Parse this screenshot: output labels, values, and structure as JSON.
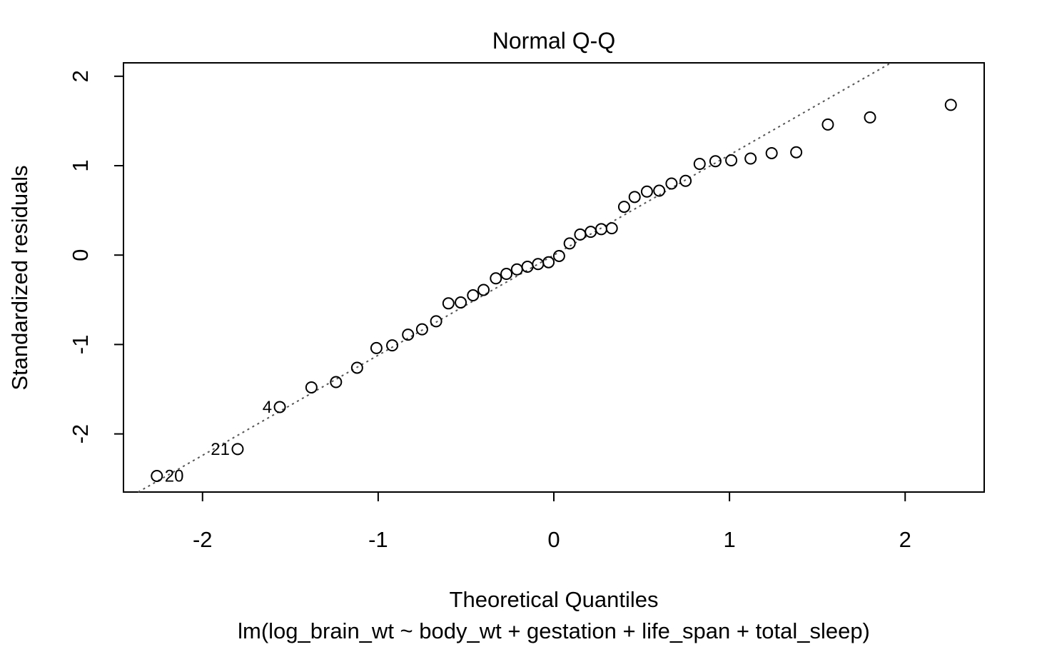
{
  "chart_data": {
    "type": "scatter",
    "title": "Normal Q-Q",
    "xlabel": "Theoretical Quantiles",
    "subtitle": "lm(log_brain_wt ~ body_wt + gestation + life_span + total_sleep)",
    "ylabel": "Standardized residuals",
    "xlim": [
      -2.45,
      2.45
    ],
    "ylim": [
      -2.65,
      2.15
    ],
    "x_ticks": [
      -2,
      -1,
      0,
      1,
      2
    ],
    "y_ticks": [
      -2,
      -1,
      0,
      1,
      2
    ],
    "x_tick_labels": [
      "-2",
      "-1",
      "0",
      "1",
      "2"
    ],
    "y_tick_labels": [
      "-2",
      "-1",
      "0",
      "1",
      "2"
    ],
    "reference_line": {
      "intercept": 0.0,
      "slope": 1.12
    },
    "points": [
      {
        "x": -2.26,
        "y": -2.47,
        "label": "20"
      },
      {
        "x": -1.8,
        "y": -2.17,
        "label": "21"
      },
      {
        "x": -1.56,
        "y": -1.7,
        "label": "4"
      },
      {
        "x": -1.38,
        "y": -1.48
      },
      {
        "x": -1.24,
        "y": -1.42
      },
      {
        "x": -1.12,
        "y": -1.26
      },
      {
        "x": -1.01,
        "y": -1.04
      },
      {
        "x": -0.92,
        "y": -1.01
      },
      {
        "x": -0.83,
        "y": -0.89
      },
      {
        "x": -0.75,
        "y": -0.83
      },
      {
        "x": -0.67,
        "y": -0.74
      },
      {
        "x": -0.6,
        "y": -0.54
      },
      {
        "x": -0.53,
        "y": -0.53
      },
      {
        "x": -0.46,
        "y": -0.45
      },
      {
        "x": -0.4,
        "y": -0.39
      },
      {
        "x": -0.33,
        "y": -0.26
      },
      {
        "x": -0.27,
        "y": -0.21
      },
      {
        "x": -0.21,
        "y": -0.16
      },
      {
        "x": -0.15,
        "y": -0.13
      },
      {
        "x": -0.09,
        "y": -0.1
      },
      {
        "x": -0.03,
        "y": -0.08
      },
      {
        "x": 0.03,
        "y": -0.01
      },
      {
        "x": 0.09,
        "y": 0.13
      },
      {
        "x": 0.15,
        "y": 0.23
      },
      {
        "x": 0.21,
        "y": 0.26
      },
      {
        "x": 0.27,
        "y": 0.29
      },
      {
        "x": 0.33,
        "y": 0.3
      },
      {
        "x": 0.4,
        "y": 0.54
      },
      {
        "x": 0.46,
        "y": 0.65
      },
      {
        "x": 0.53,
        "y": 0.71
      },
      {
        "x": 0.6,
        "y": 0.72
      },
      {
        "x": 0.67,
        "y": 0.8
      },
      {
        "x": 0.75,
        "y": 0.83
      },
      {
        "x": 0.83,
        "y": 1.02
      },
      {
        "x": 0.92,
        "y": 1.05
      },
      {
        "x": 1.01,
        "y": 1.06
      },
      {
        "x": 1.12,
        "y": 1.08
      },
      {
        "x": 1.24,
        "y": 1.14
      },
      {
        "x": 1.38,
        "y": 1.15
      },
      {
        "x": 1.56,
        "y": 1.46
      },
      {
        "x": 1.8,
        "y": 1.54
      },
      {
        "x": 2.26,
        "y": 1.68
      }
    ]
  }
}
